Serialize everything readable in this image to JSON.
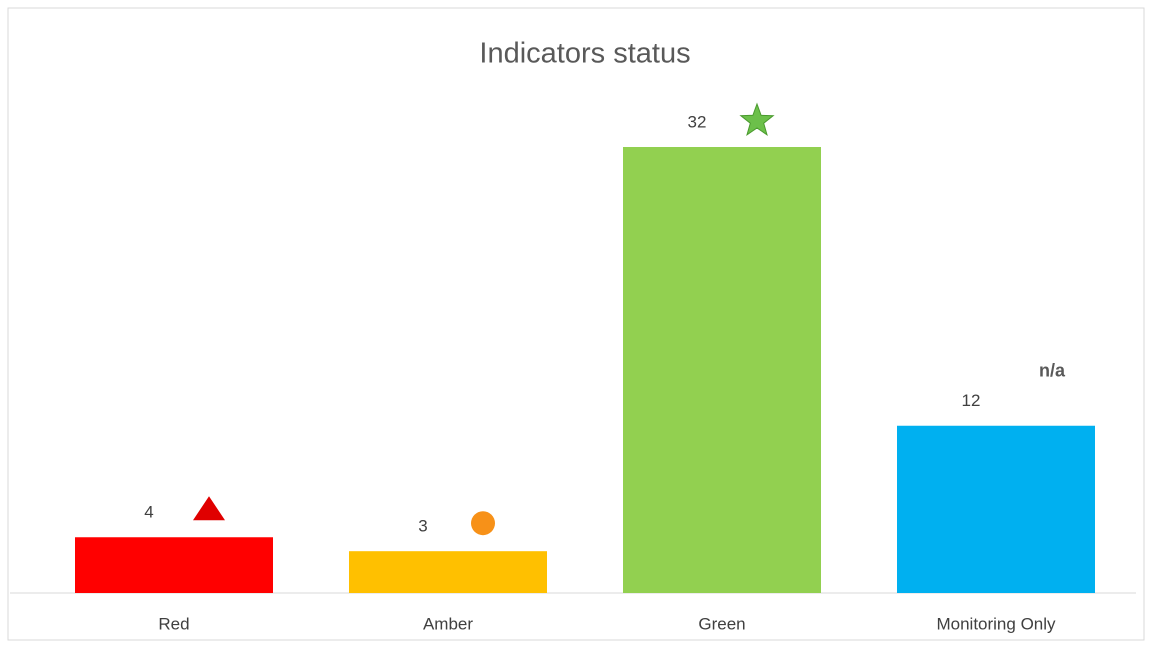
{
  "chart_data": {
    "type": "bar",
    "title": "Indicators status",
    "categories": [
      "Red",
      "Amber",
      "Green",
      "Monitoring Only"
    ],
    "values": [
      4,
      3,
      32,
      12
    ],
    "colors": [
      "#ff0000",
      "#ffc000",
      "#92d050",
      "#00b0f0"
    ],
    "icons": [
      "triangle",
      "circle",
      "star",
      null
    ],
    "annotations": [
      null,
      null,
      null,
      "n/a"
    ]
  }
}
